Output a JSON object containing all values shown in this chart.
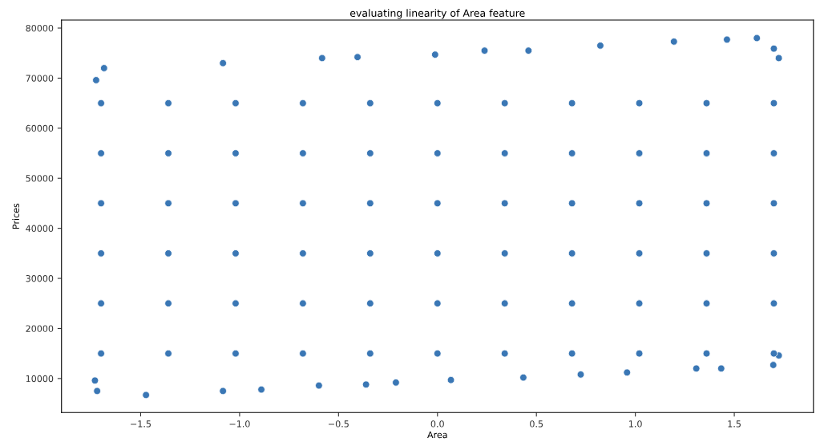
{
  "chart_data": {
    "type": "scatter",
    "title": "evaluating linearity of Area feature",
    "xlabel": "Area",
    "ylabel": "Prices",
    "xlim": [
      -1.9,
      1.9
    ],
    "xticks": [
      {
        "value": -1.5,
        "label": "−1.5"
      },
      {
        "value": -1.0,
        "label": "−1.0"
      },
      {
        "value": -0.5,
        "label": "−0.5"
      },
      {
        "value": 0.0,
        "label": "0.0"
      },
      {
        "value": 0.5,
        "label": "0.5"
      },
      {
        "value": 1.0,
        "label": "1.0"
      },
      {
        "value": 1.5,
        "label": "1.5"
      }
    ],
    "ylim": [
      3200,
      81600
    ],
    "yticks": [
      10000,
      20000,
      30000,
      40000,
      50000,
      60000,
      70000,
      80000
    ],
    "grid": false,
    "marker": "circle",
    "series": [
      {
        "color": "#3a77b5",
        "x": [
          -1.725,
          -1.685,
          -1.084,
          -0.583,
          -0.404,
          -0.012,
          0.238,
          0.46,
          0.823,
          1.195,
          1.463,
          1.614,
          1.725,
          1.7,
          -1.731,
          -1.72,
          -1.473,
          -1.084,
          -0.89,
          -0.599,
          -0.361,
          -0.21,
          0.068,
          0.434,
          0.724,
          0.958,
          1.308,
          1.434,
          1.697,
          1.725,
          -1.7,
          -1.36,
          -1.02,
          -0.68,
          -0.34,
          0.0,
          0.34,
          0.68,
          1.02,
          1.36,
          1.7,
          -1.7,
          -1.36,
          -1.02,
          -0.68,
          -0.34,
          0.0,
          0.34,
          0.68,
          1.02,
          1.36,
          1.7,
          -1.7,
          -1.36,
          -1.02,
          -0.68,
          -0.34,
          0.0,
          0.34,
          0.68,
          1.02,
          1.36,
          1.7,
          -1.7,
          -1.36,
          -1.02,
          -0.68,
          -0.34,
          0.0,
          0.34,
          0.68,
          1.02,
          1.36,
          1.7,
          -1.7,
          -1.36,
          -1.02,
          -0.68,
          -0.34,
          0.0,
          0.34,
          0.68,
          1.02,
          1.36,
          1.7,
          -1.7,
          -1.36,
          -1.02,
          -0.68,
          -0.34,
          0.0,
          0.34,
          0.68,
          1.02,
          1.36,
          1.7
        ],
        "values": [
          69600,
          72000,
          73000,
          74000,
          74200,
          74700,
          75500,
          75500,
          76500,
          77300,
          77700,
          78000,
          74000,
          75900,
          9600,
          7500,
          6700,
          7500,
          7800,
          8600,
          8800,
          9200,
          9700,
          10200,
          10800,
          11200,
          12000,
          12000,
          12700,
          14600,
          15000,
          15000,
          15000,
          15000,
          15000,
          15000,
          15000,
          15000,
          15000,
          15000,
          15000,
          25000,
          25000,
          25000,
          25000,
          25000,
          25000,
          25000,
          25000,
          25000,
          25000,
          25000,
          35000,
          35000,
          35000,
          35000,
          35000,
          35000,
          35000,
          35000,
          35000,
          35000,
          35000,
          45000,
          45000,
          45000,
          45000,
          45000,
          45000,
          45000,
          45000,
          45000,
          45000,
          45000,
          55000,
          55000,
          55000,
          55000,
          55000,
          55000,
          55000,
          55000,
          55000,
          55000,
          55000,
          65000,
          65000,
          65000,
          65000,
          65000,
          65000,
          65000,
          65000,
          65000,
          65000,
          65000
        ]
      }
    ]
  }
}
